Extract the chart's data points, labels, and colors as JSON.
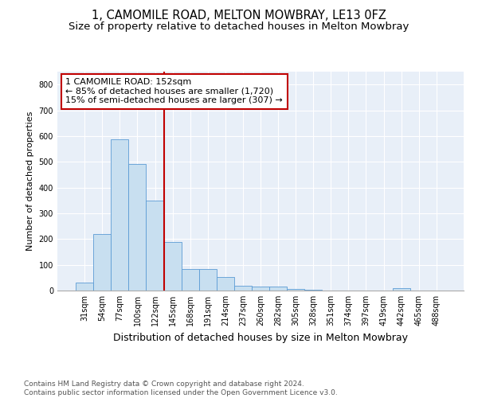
{
  "title": "1, CAMOMILE ROAD, MELTON MOWBRAY, LE13 0FZ",
  "subtitle": "Size of property relative to detached houses in Melton Mowbray",
  "xlabel": "Distribution of detached houses by size in Melton Mowbray",
  "ylabel": "Number of detached properties",
  "bar_values": [
    32,
    218,
    588,
    490,
    350,
    190,
    83,
    83,
    52,
    20,
    15,
    15,
    7,
    2,
    0,
    0,
    0,
    0,
    8,
    0,
    0
  ],
  "bar_labels": [
    "31sqm",
    "54sqm",
    "77sqm",
    "100sqm",
    "122sqm",
    "145sqm",
    "168sqm",
    "191sqm",
    "214sqm",
    "237sqm",
    "260sqm",
    "282sqm",
    "305sqm",
    "328sqm",
    "351sqm",
    "374sqm",
    "397sqm",
    "419sqm",
    "442sqm",
    "465sqm",
    "488sqm"
  ],
  "bar_color": "#c8dff0",
  "bar_edgecolor": "#5b9bd5",
  "vline_color": "#c00000",
  "annotation_text": "1 CAMOMILE ROAD: 152sqm\n← 85% of detached houses are smaller (1,720)\n15% of semi-detached houses are larger (307) →",
  "annotation_box_color": "#ffffff",
  "annotation_box_edgecolor": "#c00000",
  "ylim": [
    0,
    850
  ],
  "yticks": [
    0,
    100,
    200,
    300,
    400,
    500,
    600,
    700,
    800
  ],
  "background_color": "#e8eff8",
  "footer_line1": "Contains HM Land Registry data © Crown copyright and database right 2024.",
  "footer_line2": "Contains public sector information licensed under the Open Government Licence v3.0.",
  "title_fontsize": 10.5,
  "subtitle_fontsize": 9.5,
  "xlabel_fontsize": 9,
  "ylabel_fontsize": 8,
  "tick_fontsize": 7,
  "footer_fontsize": 6.5,
  "annotation_fontsize": 8
}
